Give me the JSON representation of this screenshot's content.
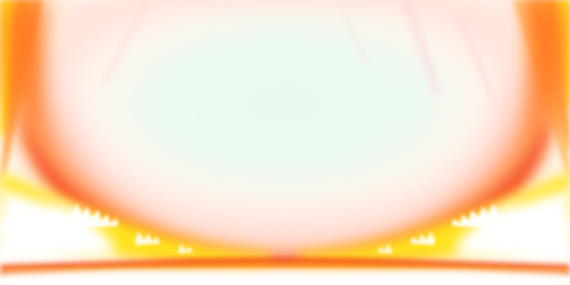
{
  "image": {
    "description_colors": {
      "center_glow": "#e8f8ec",
      "halo_pink": "#ffdcd4",
      "flame_orange": "#ff6a18",
      "flame_red": "#f23a0c",
      "flame_yellow": "#ffe21a",
      "highlight_white": "#ffffff"
    }
  }
}
